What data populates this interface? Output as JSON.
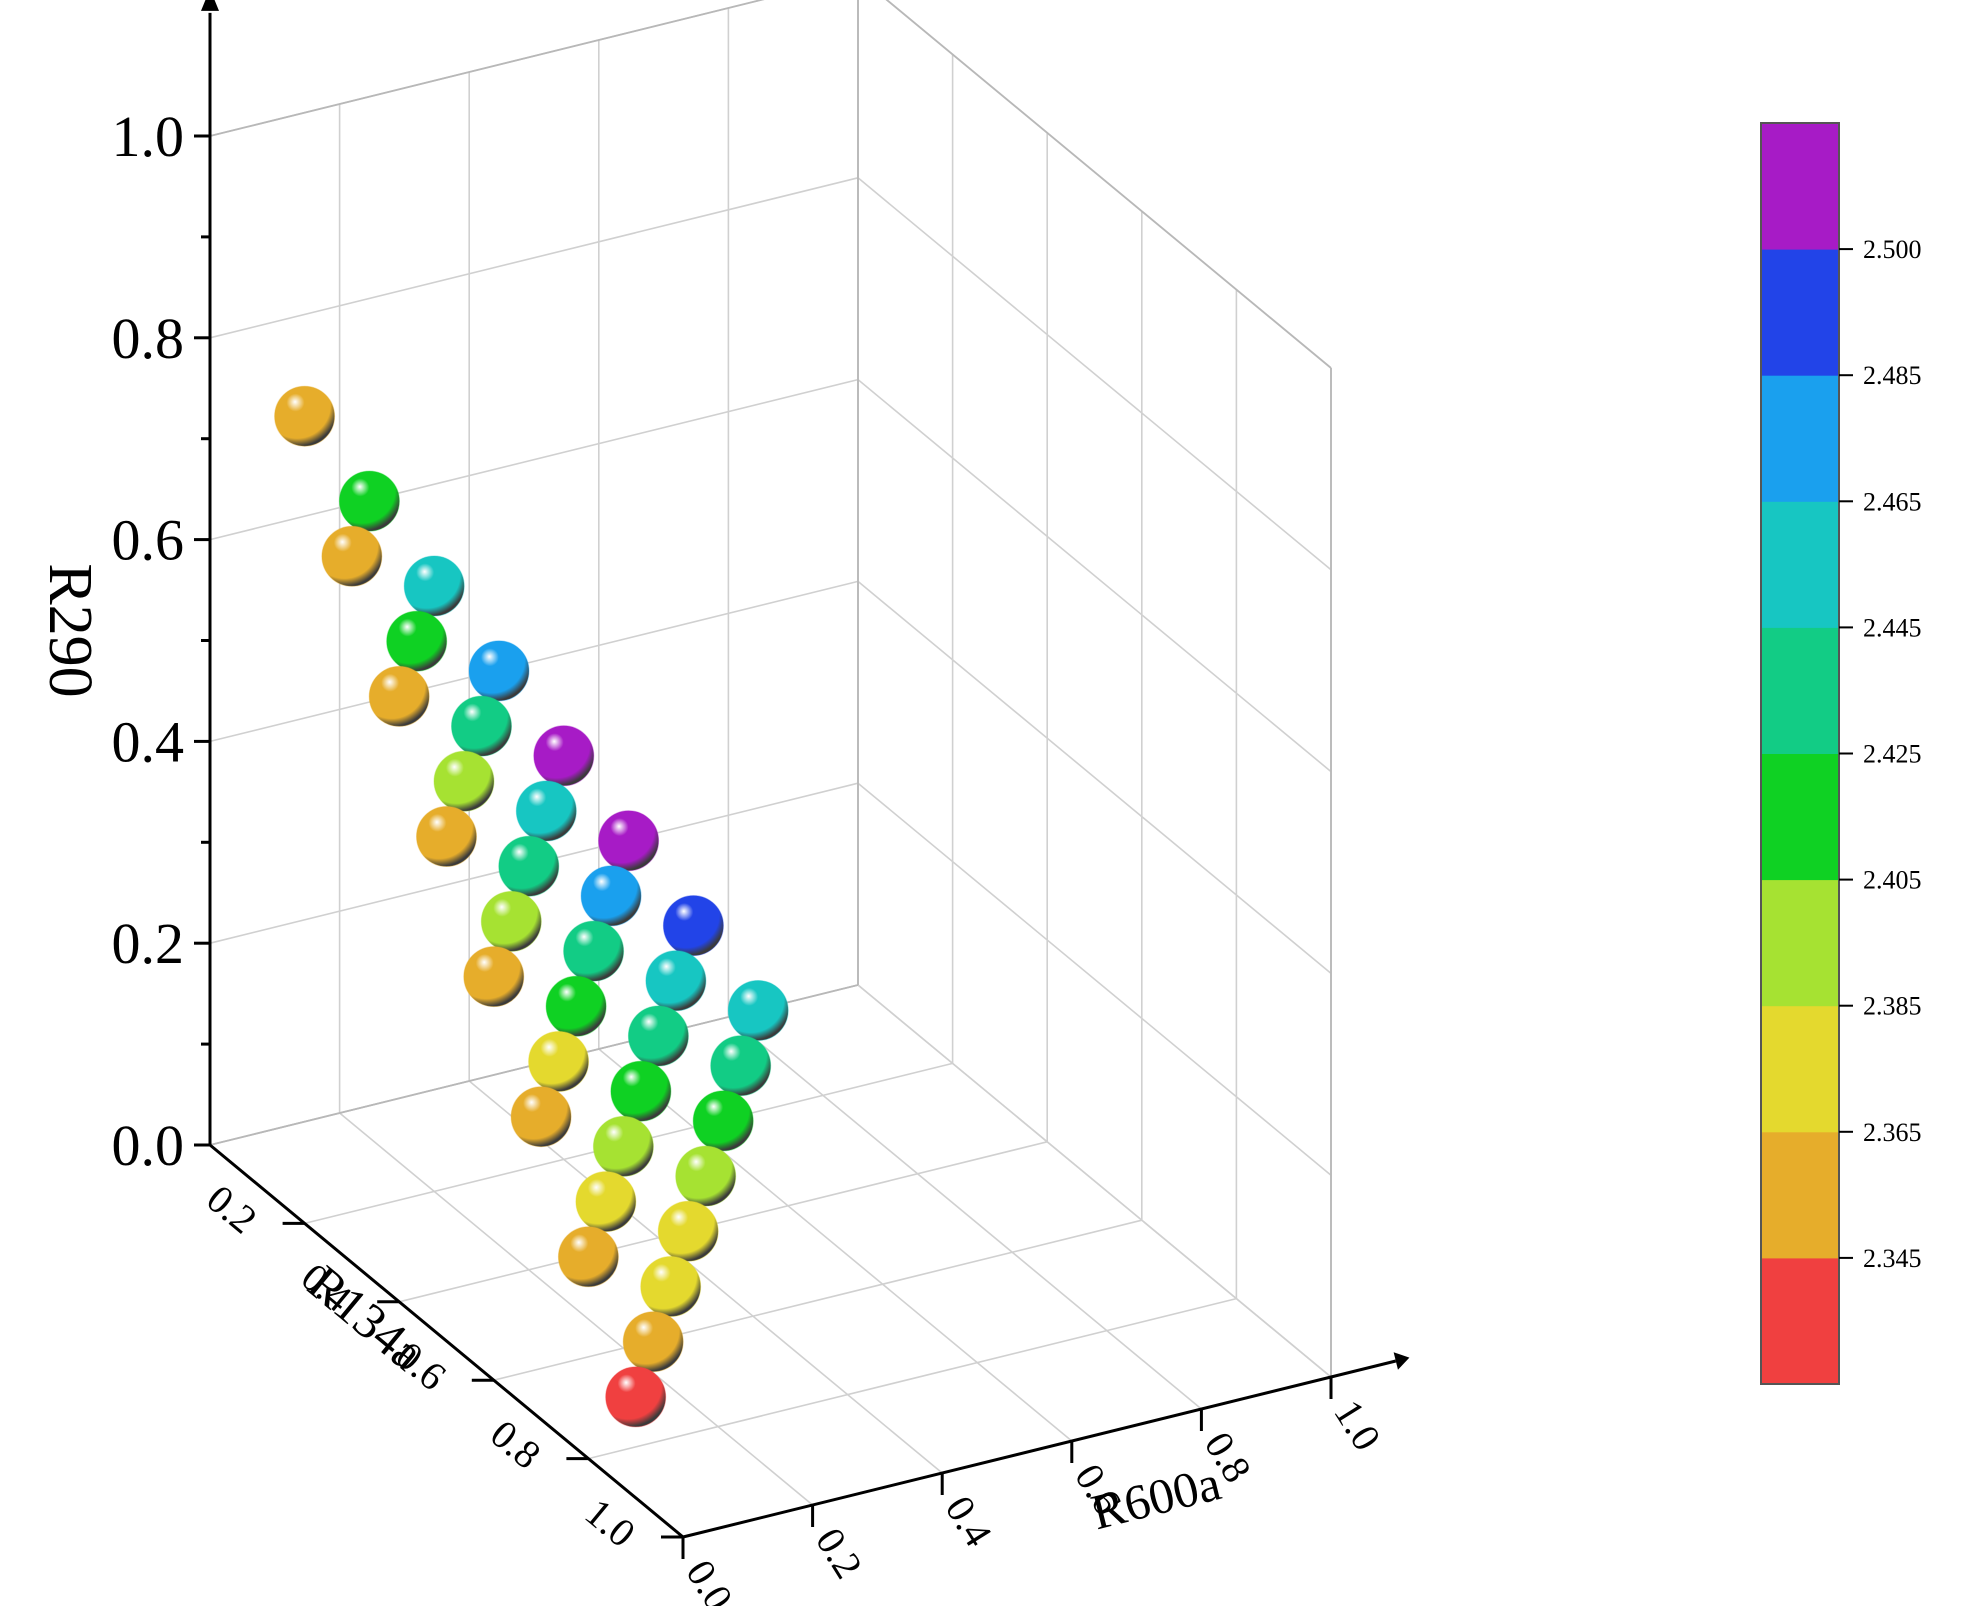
{
  "chart_data": {
    "type": "scatter",
    "projection": "3d",
    "axes": {
      "x": {
        "label": "R600a",
        "ticks": [
          "0.0",
          "0.2",
          "0.4",
          "0.6",
          "0.8",
          "1.0"
        ],
        "range": [
          0,
          1
        ]
      },
      "y": {
        "label": "R134a",
        "ticks": [
          "0.2",
          "0.4",
          "0.6",
          "0.8",
          "1.0"
        ],
        "range": [
          0,
          1
        ]
      },
      "z": {
        "label": "R290",
        "ticks": [
          "0.0",
          "0.2",
          "0.4",
          "0.6",
          "0.8",
          "1.0"
        ],
        "range": [
          0,
          1
        ]
      }
    },
    "grid": true,
    "marker": "sphere",
    "points": [
      {
        "R600a": 0.0,
        "R134a": 0.2,
        "R290": 0.8,
        "value": 2.36
      },
      {
        "R600a": 0.0,
        "R134a": 0.3,
        "R290": 0.7,
        "value": 2.36
      },
      {
        "R600a": 0.1,
        "R134a": 0.2,
        "R290": 0.7,
        "value": 2.415
      },
      {
        "R600a": 0.0,
        "R134a": 0.4,
        "R290": 0.6,
        "value": 2.36
      },
      {
        "R600a": 0.1,
        "R134a": 0.3,
        "R290": 0.6,
        "value": 2.415
      },
      {
        "R600a": 0.2,
        "R134a": 0.2,
        "R290": 0.6,
        "value": 2.455
      },
      {
        "R600a": 0.0,
        "R134a": 0.5,
        "R290": 0.5,
        "value": 2.36
      },
      {
        "R600a": 0.1,
        "R134a": 0.4,
        "R290": 0.5,
        "value": 2.395
      },
      {
        "R600a": 0.2,
        "R134a": 0.3,
        "R290": 0.5,
        "value": 2.435
      },
      {
        "R600a": 0.3,
        "R134a": 0.2,
        "R290": 0.5,
        "value": 2.475
      },
      {
        "R600a": 0.0,
        "R134a": 0.6,
        "R290": 0.4,
        "value": 2.36
      },
      {
        "R600a": 0.1,
        "R134a": 0.5,
        "R290": 0.4,
        "value": 2.395
      },
      {
        "R600a": 0.2,
        "R134a": 0.4,
        "R290": 0.4,
        "value": 2.435
      },
      {
        "R600a": 0.3,
        "R134a": 0.3,
        "R290": 0.4,
        "value": 2.455
      },
      {
        "R600a": 0.4,
        "R134a": 0.2,
        "R290": 0.4,
        "value": 2.51
      },
      {
        "R600a": 0.0,
        "R134a": 0.7,
        "R290": 0.3,
        "value": 2.36
      },
      {
        "R600a": 0.1,
        "R134a": 0.6,
        "R290": 0.3,
        "value": 2.375
      },
      {
        "R600a": 0.2,
        "R134a": 0.5,
        "R290": 0.3,
        "value": 2.415
      },
      {
        "R600a": 0.3,
        "R134a": 0.4,
        "R290": 0.3,
        "value": 2.435
      },
      {
        "R600a": 0.4,
        "R134a": 0.3,
        "R290": 0.3,
        "value": 2.475
      },
      {
        "R600a": 0.5,
        "R134a": 0.2,
        "R290": 0.3,
        "value": 2.51
      },
      {
        "R600a": 0.0,
        "R134a": 0.8,
        "R290": 0.2,
        "value": 2.36
      },
      {
        "R600a": 0.1,
        "R134a": 0.7,
        "R290": 0.2,
        "value": 2.375
      },
      {
        "R600a": 0.2,
        "R134a": 0.6,
        "R290": 0.2,
        "value": 2.395
      },
      {
        "R600a": 0.3,
        "R134a": 0.5,
        "R290": 0.2,
        "value": 2.415
      },
      {
        "R600a": 0.4,
        "R134a": 0.4,
        "R290": 0.2,
        "value": 2.435
      },
      {
        "R600a": 0.5,
        "R134a": 0.3,
        "R290": 0.2,
        "value": 2.455
      },
      {
        "R600a": 0.6,
        "R134a": 0.2,
        "R290": 0.2,
        "value": 2.495
      },
      {
        "R600a": 0.0,
        "R134a": 0.9,
        "R290": 0.1,
        "value": 2.335
      },
      {
        "R600a": 0.1,
        "R134a": 0.8,
        "R290": 0.1,
        "value": 2.36
      },
      {
        "R600a": 0.2,
        "R134a": 0.7,
        "R290": 0.1,
        "value": 2.375
      },
      {
        "R600a": 0.3,
        "R134a": 0.6,
        "R290": 0.1,
        "value": 2.375
      },
      {
        "R600a": 0.4,
        "R134a": 0.5,
        "R290": 0.1,
        "value": 2.395
      },
      {
        "R600a": 0.5,
        "R134a": 0.4,
        "R290": 0.1,
        "value": 2.415
      },
      {
        "R600a": 0.6,
        "R134a": 0.3,
        "R290": 0.1,
        "value": 2.435
      },
      {
        "R600a": 0.7,
        "R134a": 0.2,
        "R290": 0.1,
        "value": 2.455
      }
    ],
    "colorbar": {
      "ticks": [
        "2.345",
        "2.365",
        "2.385",
        "2.405",
        "2.425",
        "2.445",
        "2.465",
        "2.485",
        "2.500"
      ],
      "levels": [
        {
          "from": 2.325,
          "to": 2.345,
          "color": "#f04040"
        },
        {
          "from": 2.345,
          "to": 2.365,
          "color": "#e6ad2b"
        },
        {
          "from": 2.365,
          "to": 2.385,
          "color": "#e4d92e"
        },
        {
          "from": 2.385,
          "to": 2.405,
          "color": "#a6e232"
        },
        {
          "from": 2.405,
          "to": 2.425,
          "color": "#0fd123"
        },
        {
          "from": 2.425,
          "to": 2.445,
          "color": "#12cc85"
        },
        {
          "from": 2.445,
          "to": 2.465,
          "color": "#17c6c2"
        },
        {
          "from": 2.465,
          "to": 2.485,
          "color": "#1aa0ee"
        },
        {
          "from": 2.485,
          "to": 2.5,
          "color": "#2244e8"
        },
        {
          "from": 2.5,
          "to": 2.52,
          "color": "#a71bc6"
        }
      ]
    }
  }
}
